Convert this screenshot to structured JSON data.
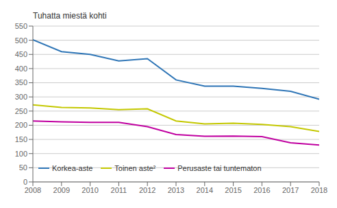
{
  "chart_data": {
    "type": "line",
    "ylabel": "Tuhatta miestä kohti",
    "x": [
      2008,
      2009,
      2010,
      2011,
      2012,
      2013,
      2014,
      2015,
      2016,
      2017,
      2018
    ],
    "xlim": [
      2008,
      2018
    ],
    "xticks": [
      2008,
      2009,
      2010,
      2011,
      2012,
      2013,
      2014,
      2015,
      2016,
      2017,
      2018
    ],
    "ylim": [
      0,
      550
    ],
    "yticks": [
      0,
      50,
      100,
      150,
      200,
      250,
      300,
      350,
      400,
      450,
      500,
      550
    ],
    "grid": "y",
    "legend": "lower left",
    "series": [
      {
        "name": "Korkea-aste",
        "color": "#2e75b6",
        "values": [
          502,
          460,
          450,
          427,
          435,
          360,
          338,
          338,
          330,
          320,
          292
        ]
      },
      {
        "name": "Toinen aste²",
        "color": "#c4c800",
        "values": [
          272,
          263,
          261,
          255,
          258,
          215,
          205,
          207,
          203,
          195,
          178
        ]
      },
      {
        "name": "Perusaste tai tuntematon",
        "color": "#c000a0",
        "values": [
          215,
          212,
          210,
          210,
          195,
          167,
          161,
          162,
          160,
          138,
          130
        ]
      }
    ]
  }
}
